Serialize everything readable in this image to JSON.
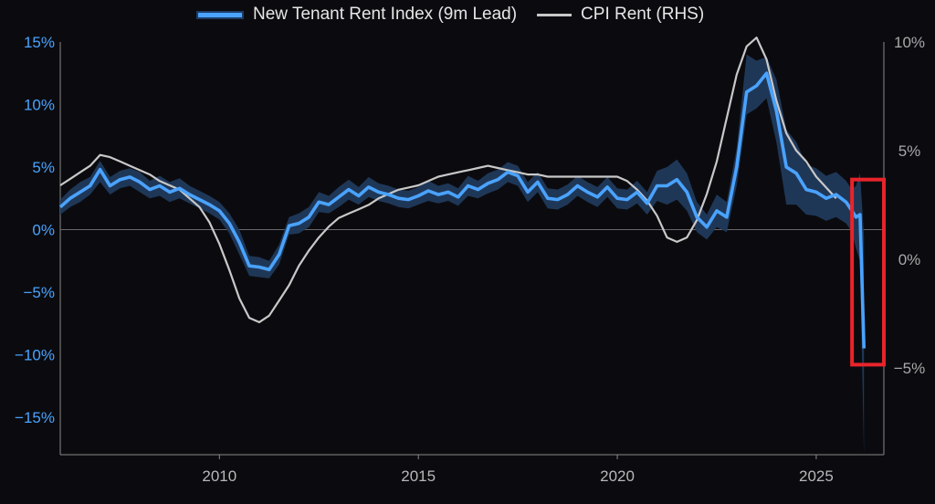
{
  "legend": {
    "series1": "New Tenant Rent Index (9m Lead)",
    "series2": "CPI Rent (RHS)"
  },
  "colors": {
    "background": "#0b0b0f",
    "ntri_line": "#4aa3ff",
    "ntri_band": "#213a5c",
    "cpi_line": "#c8c8c8",
    "left_axis_text": "#4aa3ff",
    "right_axis_text": "#a8a8a8",
    "highlight_box": "#e8242b"
  },
  "chart_data": {
    "type": "line",
    "x_ticks": [
      2010,
      2015,
      2020,
      2025
    ],
    "xlim": [
      2006.0,
      2026.7
    ],
    "y_left": {
      "lim": [
        -18,
        15
      ],
      "ticks": [
        15,
        10,
        5,
        0,
        -5,
        -10,
        -15
      ],
      "tick_labels": [
        "15%",
        "10%",
        "5%",
        "0%",
        "−5%",
        "−10%",
        "−15%"
      ]
    },
    "y_right": {
      "lim": [
        -9,
        10
      ],
      "ticks": [
        10,
        5,
        0,
        -5
      ],
      "tick_labels": [
        "10%",
        "5%",
        "0%",
        "−5%"
      ]
    },
    "series": [
      {
        "name": "New Tenant Rent Index (9m Lead)",
        "axis": "left",
        "x": [
          2006.0,
          2006.25,
          2006.5,
          2006.75,
          2007.0,
          2007.25,
          2007.5,
          2007.75,
          2008.0,
          2008.25,
          2008.5,
          2008.75,
          2009.0,
          2009.25,
          2009.5,
          2009.75,
          2010.0,
          2010.25,
          2010.5,
          2010.75,
          2011.0,
          2011.25,
          2011.5,
          2011.75,
          2012.0,
          2012.25,
          2012.5,
          2012.75,
          2013.0,
          2013.25,
          2013.5,
          2013.75,
          2014.0,
          2014.25,
          2014.5,
          2014.75,
          2015.0,
          2015.25,
          2015.5,
          2015.75,
          2016.0,
          2016.25,
          2016.5,
          2016.75,
          2017.0,
          2017.25,
          2017.5,
          2017.75,
          2018.0,
          2018.25,
          2018.5,
          2018.75,
          2019.0,
          2019.25,
          2019.5,
          2019.75,
          2020.0,
          2020.25,
          2020.5,
          2020.75,
          2021.0,
          2021.25,
          2021.5,
          2021.75,
          2022.0,
          2022.25,
          2022.5,
          2022.75,
          2023.0,
          2023.25,
          2023.5,
          2023.75,
          2024.0,
          2024.25,
          2024.5,
          2024.75,
          2025.0,
          2025.25,
          2025.5,
          2025.75,
          2025.9,
          2026.0,
          2026.1,
          2026.2
        ],
        "values": [
          1.8,
          2.5,
          3.0,
          3.5,
          4.8,
          3.5,
          4.0,
          4.2,
          3.8,
          3.2,
          3.5,
          3.0,
          3.3,
          2.8,
          2.4,
          2.0,
          1.5,
          0.5,
          -1.0,
          -2.9,
          -3.0,
          -3.2,
          -2.0,
          0.3,
          0.5,
          1.0,
          2.2,
          2.0,
          2.6,
          3.2,
          2.7,
          3.4,
          3.0,
          2.8,
          2.5,
          2.4,
          2.7,
          3.1,
          2.8,
          3.0,
          2.6,
          3.5,
          3.2,
          3.7,
          4.0,
          4.6,
          4.3,
          3.0,
          3.8,
          2.5,
          2.4,
          2.8,
          3.5,
          3.0,
          2.6,
          3.4,
          2.5,
          2.4,
          3.0,
          2.1,
          3.5,
          3.5,
          4.0,
          3.0,
          1.0,
          0.2,
          1.5,
          1.0,
          5.0,
          11.0,
          11.5,
          12.5,
          9.5,
          5.0,
          4.5,
          3.2,
          3.0,
          2.5,
          2.8,
          2.2,
          1.5,
          1.0,
          1.2,
          -9.5
        ]
      },
      {
        "name": "CPI Rent (RHS)",
        "axis": "right",
        "x": [
          2006.0,
          2006.25,
          2006.5,
          2006.75,
          2007.0,
          2007.25,
          2007.5,
          2007.75,
          2008.0,
          2008.25,
          2008.5,
          2008.75,
          2009.0,
          2009.25,
          2009.5,
          2009.75,
          2010.0,
          2010.25,
          2010.5,
          2010.75,
          2011.0,
          2011.25,
          2011.5,
          2011.75,
          2012.0,
          2012.25,
          2012.5,
          2012.75,
          2013.0,
          2013.25,
          2013.5,
          2013.75,
          2014.0,
          2014.25,
          2014.5,
          2014.75,
          2015.0,
          2015.25,
          2015.5,
          2015.75,
          2016.0,
          2016.25,
          2016.5,
          2016.75,
          2017.0,
          2017.25,
          2017.5,
          2017.75,
          2018.0,
          2018.25,
          2018.5,
          2018.75,
          2019.0,
          2019.25,
          2019.5,
          2019.75,
          2020.0,
          2020.25,
          2020.5,
          2020.75,
          2021.0,
          2021.25,
          2021.5,
          2021.75,
          2022.0,
          2022.25,
          2022.5,
          2022.75,
          2023.0,
          2023.25,
          2023.5,
          2023.75,
          2024.0,
          2024.25,
          2024.5,
          2024.75,
          2025.0,
          2025.25,
          2025.5
        ],
        "values": [
          3.4,
          3.7,
          4.0,
          4.3,
          4.8,
          4.7,
          4.5,
          4.3,
          4.1,
          3.9,
          3.6,
          3.4,
          3.2,
          2.8,
          2.4,
          1.7,
          0.7,
          -0.5,
          -1.8,
          -2.7,
          -2.9,
          -2.6,
          -1.9,
          -1.2,
          -0.3,
          0.4,
          1.0,
          1.5,
          1.9,
          2.1,
          2.3,
          2.5,
          2.8,
          3.0,
          3.2,
          3.3,
          3.4,
          3.6,
          3.8,
          3.9,
          4.0,
          4.1,
          4.2,
          4.3,
          4.2,
          4.1,
          4.0,
          3.9,
          3.9,
          3.8,
          3.8,
          3.8,
          3.8,
          3.8,
          3.8,
          3.8,
          3.8,
          3.6,
          3.2,
          2.7,
          2.0,
          1.0,
          0.8,
          1.0,
          1.8,
          3.0,
          4.5,
          6.5,
          8.5,
          9.8,
          10.2,
          9.2,
          7.3,
          5.8,
          5.0,
          4.5,
          3.8,
          3.3,
          2.8
        ]
      }
    ],
    "band": {
      "series": "New Tenant Rent Index (9m Lead)",
      "lower": [
        1.2,
        1.8,
        2.2,
        2.8,
        3.8,
        2.8,
        3.3,
        3.5,
        3.0,
        2.5,
        2.7,
        2.2,
        2.5,
        2.1,
        1.7,
        1.3,
        0.8,
        -0.3,
        -2.0,
        -3.7,
        -3.8,
        -3.9,
        -2.8,
        -0.4,
        -0.3,
        0.2,
        1.4,
        1.3,
        1.8,
        2.4,
        2.0,
        2.6,
        2.3,
        2.1,
        1.8,
        1.7,
        2.0,
        2.3,
        2.1,
        2.3,
        1.9,
        2.7,
        2.5,
        2.9,
        3.2,
        3.8,
        3.5,
        2.2,
        3.0,
        1.7,
        1.6,
        2.0,
        2.7,
        2.2,
        1.8,
        2.6,
        1.7,
        1.6,
        2.1,
        1.2,
        2.3,
        2.0,
        2.4,
        1.5,
        -0.2,
        -0.8,
        0.2,
        -0.2,
        3.5,
        9.2,
        9.7,
        10.5,
        7.0,
        2.0,
        2.0,
        1.2,
        1.1,
        0.7,
        1.0,
        0.5,
        -0.2,
        -1.5,
        -2.5,
        -18.0
      ],
      "upper": [
        2.4,
        3.2,
        3.8,
        4.2,
        5.5,
        4.2,
        4.7,
        4.9,
        4.6,
        3.9,
        4.3,
        3.8,
        4.1,
        3.5,
        3.1,
        2.7,
        2.2,
        1.3,
        0.0,
        -2.1,
        -2.2,
        -2.5,
        -1.2,
        1.0,
        1.3,
        1.8,
        3.0,
        2.7,
        3.4,
        4.0,
        3.4,
        4.2,
        3.7,
        3.5,
        3.2,
        3.1,
        3.4,
        3.9,
        3.5,
        3.7,
        3.3,
        4.3,
        3.9,
        4.5,
        4.8,
        5.4,
        5.1,
        3.8,
        4.6,
        3.3,
        3.2,
        3.6,
        4.3,
        3.8,
        3.4,
        4.2,
        3.3,
        3.2,
        3.9,
        3.0,
        4.7,
        5.0,
        5.6,
        4.5,
        2.2,
        1.2,
        2.8,
        2.2,
        6.5,
        14.0,
        13.5,
        13.8,
        12.0,
        8.0,
        7.0,
        5.2,
        4.9,
        4.3,
        4.6,
        3.9,
        3.2,
        3.5,
        4.5,
        -0.5
      ]
    },
    "grid": false,
    "zero_line": true,
    "legend_position": "top-center",
    "highlight": {
      "type": "box",
      "color": "#e8242b",
      "x_range": [
        2025.9,
        2026.7
      ],
      "y_range": [
        -10.8,
        4.0
      ]
    }
  }
}
